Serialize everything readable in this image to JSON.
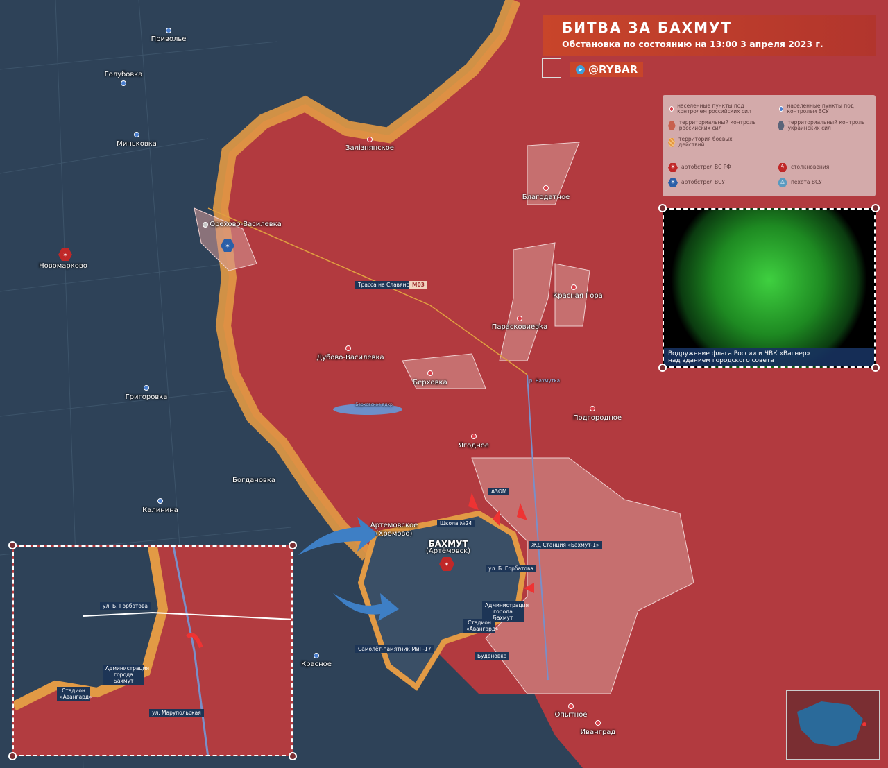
{
  "header": {
    "title": "БИТВА ЗА БАХМУТ",
    "subtitle": "Обстановка по состоянию на 13:00 3 апреля 2023 г.",
    "channel": "@RYBAR",
    "channel_icon": "telegram-icon"
  },
  "colors": {
    "russian_control": "#b23a3f",
    "ukrainian_control": "#2e4258",
    "combat_zone": "#e29a45",
    "ru_settlement": "#d8404a",
    "ua_settlement": "#4a7fd0"
  },
  "legend": {
    "items": [
      {
        "label": "населенные пункты под контролем российских сил",
        "icon": "red-dot-icon"
      },
      {
        "label": "населенные пункты под контролем ВСУ",
        "icon": "blue-dot-icon"
      },
      {
        "label": "территориальный контроль российских сил",
        "icon": "red-hexagon-icon"
      },
      {
        "label": "территориальный контроль украинских сил",
        "icon": "gray-hexagon-icon"
      },
      {
        "label": "территория боевых действий",
        "icon": "hatched-hexagon-icon"
      },
      {
        "label": "артобстрел ВС РФ",
        "icon": "ru-artillery-icon"
      },
      {
        "label": "столкновения",
        "icon": "clash-icon"
      },
      {
        "label": "артобстрел ВСУ",
        "icon": "ua-artillery-icon"
      },
      {
        "label": "пехота ВСУ",
        "icon": "infantry-icon"
      }
    ]
  },
  "photo": {
    "caption_1": "Водружение флага России и ЧВК «Вагнер»",
    "caption_2": "над зданием городского совета"
  },
  "settlements": {
    "ru": [
      "Залізнянское",
      "Благодатное",
      "Красная Гора",
      "Парасковиевка",
      "Дубово-Василевка",
      "Берховка",
      "Подгородное",
      "Ягодное",
      "Опытное",
      "Ивангрaд"
    ],
    "ua": [
      "Приволье",
      "Голубовка",
      "Миньковка",
      "Новомарково",
      "Григоровка",
      "Богдановка",
      "Калинина",
      "Красное",
      "Артемовское",
      "(Хромово)"
    ],
    "other": [
      "Орехово-Василевка"
    ],
    "city": "БАХМУТ",
    "city_alt": "(Артёмовск)"
  },
  "callouts": [
    "Трасса на Славянск",
    "М03",
    "АЗОМ",
    "Школа №24",
    "ЖД Станция «Бахмут-1»",
    "ул. Б. Горбатова",
    "Администрация города Бахмут",
    "Стадион «Авангард»",
    "Самолёт-памятник МиГ-17",
    "Буденовка"
  ],
  "water": [
    "р. Бахмутка",
    "Берховское вдхр."
  ],
  "inset": {
    "labels": [
      "ул. Б. Горбатова",
      "Администрация города Бахмут",
      "Стадион «Авангард»",
      "ул. Марупольская"
    ]
  }
}
